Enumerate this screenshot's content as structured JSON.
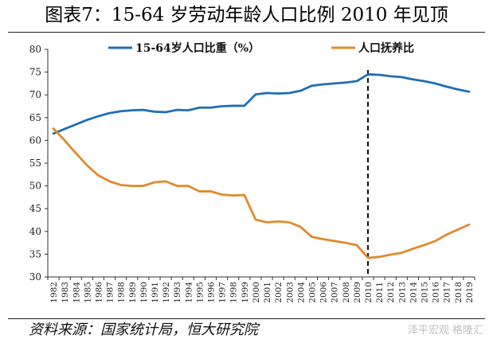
{
  "title": "图表7：15-64 岁劳动年龄人口比例 2010 年见顶",
  "source": "资料来源：国家统计局，恒大研究院",
  "watermark": "泽平宏观  格隆汇",
  "chart_data": {
    "type": "line",
    "x": [
      "1982",
      "1983",
      "1984",
      "1985",
      "1986",
      "1987",
      "1988",
      "1989",
      "1990",
      "1991",
      "1992",
      "1993",
      "1994",
      "1995",
      "1996",
      "1997",
      "1998",
      "1999",
      "2000",
      "2001",
      "2002",
      "2003",
      "2004",
      "2005",
      "2006",
      "2007",
      "2008",
      "2009",
      "2010",
      "2011",
      "2012",
      "2013",
      "2014",
      "2015",
      "2016",
      "2017",
      "2018",
      "2019"
    ],
    "series": [
      {
        "name": "15-64岁人口比重（%）",
        "color": "#1f6eb5",
        "values": [
          61.5,
          62.5,
          63.5,
          64.5,
          65.3,
          66.0,
          66.4,
          66.6,
          66.7,
          66.3,
          66.2,
          66.7,
          66.6,
          67.2,
          67.2,
          67.5,
          67.6,
          67.6,
          70.1,
          70.4,
          70.3,
          70.4,
          70.9,
          72.0,
          72.3,
          72.5,
          72.7,
          73.0,
          74.5,
          74.4,
          74.1,
          73.9,
          73.4,
          73.0,
          72.5,
          71.8,
          71.2,
          70.7
        ]
      },
      {
        "name": "人口抚养比",
        "color": "#e08a2c",
        "values": [
          62.6,
          60.0,
          57.2,
          54.5,
          52.3,
          51.0,
          50.2,
          50.0,
          50.0,
          50.8,
          51.0,
          50.0,
          50.0,
          48.8,
          48.8,
          48.1,
          47.9,
          48.0,
          42.6,
          42.0,
          42.2,
          42.0,
          41.0,
          38.8,
          38.3,
          37.9,
          37.5,
          37.0,
          34.2,
          34.4,
          34.9,
          35.3,
          36.2,
          37.0,
          37.9,
          39.3,
          40.4,
          41.5
        ]
      }
    ],
    "ylim": [
      30,
      80
    ],
    "yticks": [
      30,
      35,
      40,
      45,
      50,
      55,
      60,
      65,
      70,
      75,
      80
    ],
    "marker_x": "2010",
    "legend_position": "top",
    "grid": false,
    "xlabel": "",
    "ylabel": ""
  }
}
